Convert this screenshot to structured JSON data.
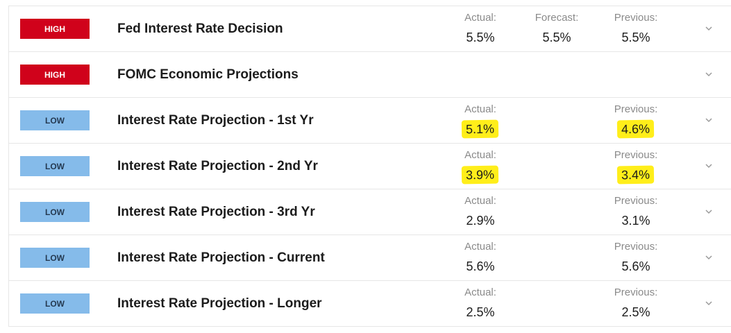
{
  "events": [
    {
      "impact": "HIGH",
      "impact_level": "high",
      "title": "Fed Interest Rate Decision",
      "actual_label": "Actual:",
      "actual": "5.5%",
      "forecast_label": "Forecast:",
      "forecast": "5.5%",
      "previous_label": "Previous:",
      "previous": "5.5%",
      "highlighted": false
    },
    {
      "impact": "HIGH",
      "impact_level": "high",
      "title": "FOMC Economic Projections",
      "highlighted": false
    },
    {
      "impact": "LOW",
      "impact_level": "low",
      "title": "Interest Rate Projection - 1st Yr",
      "actual_label": "Actual:",
      "actual": "5.1%",
      "previous_label": "Previous:",
      "previous": "4.6%",
      "highlighted": true
    },
    {
      "impact": "LOW",
      "impact_level": "low",
      "title": "Interest Rate Projection - 2nd Yr",
      "actual_label": "Actual:",
      "actual": "3.9%",
      "previous_label": "Previous:",
      "previous": "3.4%",
      "highlighted": true
    },
    {
      "impact": "LOW",
      "impact_level": "low",
      "title": "Interest Rate Projection - 3rd Yr",
      "actual_label": "Actual:",
      "actual": "2.9%",
      "previous_label": "Previous:",
      "previous": "3.1%",
      "highlighted": false
    },
    {
      "impact": "LOW",
      "impact_level": "low",
      "title": "Interest Rate Projection - Current",
      "actual_label": "Actual:",
      "actual": "5.6%",
      "previous_label": "Previous:",
      "previous": "5.6%",
      "highlighted": false
    },
    {
      "impact": "LOW",
      "impact_level": "low",
      "title": "Interest Rate Projection - Longer",
      "actual_label": "Actual:",
      "actual": "2.5%",
      "previous_label": "Previous:",
      "previous": "2.5%",
      "highlighted": false
    }
  ],
  "colors": {
    "high_impact": "#d0021b",
    "low_impact": "#85bbea",
    "highlight": "#ffee1a"
  },
  "icons": {
    "expand": "chevron-down-icon"
  }
}
